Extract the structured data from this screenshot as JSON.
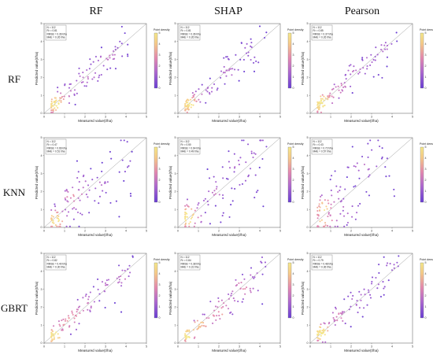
{
  "column_titles": [
    "RF",
    "SHAP",
    "Pearson"
  ],
  "row_titles": [
    "RF",
    "KNN",
    "GBRT"
  ],
  "chart_data": [
    {
      "type": "scatter",
      "row": "RF",
      "column": "RF",
      "xlabel": "Measured value(t/ha)",
      "ylabel": "Predicted value(t/ha)",
      "xlim": [
        0,
        5
      ],
      "ylim": [
        0,
        5
      ],
      "stats": [
        "N = 112",
        "R² = 0.81",
        "RMSE = 0.36 t/ha",
        "MAE = 0.26 t/ha"
      ],
      "colorbar_label": "Point density",
      "colorbar_ticks": [
        "0",
        "1",
        "2",
        "3",
        "4",
        "5"
      ],
      "colors": [
        "#6a3fd4",
        "#b06ad0",
        "#e58ab0",
        "#f7c98a",
        "#f5e98a"
      ]
    },
    {
      "type": "scatter",
      "row": "RF",
      "column": "SHAP",
      "xlabel": "Measured value(t/ha)",
      "ylabel": "Predicted value(t/ha)",
      "xlim": [
        0,
        5
      ],
      "ylim": [
        0,
        5
      ],
      "stats": [
        "N = 112",
        "R² = 0.81",
        "RMSE = 0.36 t/ha",
        "MAE = 0.26 t/ha"
      ],
      "colorbar_label": "Point density",
      "colorbar_ticks": [
        "0",
        "1",
        "2",
        "3",
        "4",
        "5"
      ],
      "colors": [
        "#6a3fd4",
        "#b06ad0",
        "#e58ab0",
        "#f7c98a",
        "#f5e98a"
      ]
    },
    {
      "type": "scatter",
      "row": "RF",
      "column": "Pearson",
      "xlabel": "Measured value(t/ha)",
      "ylabel": "Predicted value(t/ha)",
      "xlim": [
        0,
        5
      ],
      "ylim": [
        0,
        5
      ],
      "stats": [
        "N = 112",
        "R² = 0.85",
        "RMSE = 0.37 t/ha",
        "MAE = 0.26 t/ha"
      ],
      "colorbar_label": "Point density",
      "colorbar_ticks": [
        "0",
        "1",
        "2",
        "3",
        "4",
        "5"
      ],
      "colors": [
        "#6a3fd4",
        "#b06ad0",
        "#e58ab0",
        "#f7c98a",
        "#f5e98a"
      ]
    },
    {
      "type": "scatter",
      "row": "KNN",
      "column": "RF",
      "xlabel": "Measured value(t/ha)",
      "ylabel": "Predicted value(t/ha)",
      "xlim": [
        0,
        5
      ],
      "ylim": [
        0,
        5
      ],
      "stats": [
        "N = 112",
        "R² = 0.47",
        "RMSE = 0.66 t/ha",
        "MAE = 0.51 t/ha"
      ],
      "colorbar_label": "Point density",
      "colorbar_ticks": [
        "0",
        "1",
        "2",
        "3",
        "4",
        "5"
      ],
      "colors": [
        "#6a3fd4",
        "#b06ad0",
        "#e58ab0",
        "#f7c98a",
        "#f5e98a"
      ]
    },
    {
      "type": "scatter",
      "row": "KNN",
      "column": "SHAP",
      "xlabel": "Measured value(t/ha)",
      "ylabel": "Predicted value(t/ha)",
      "xlim": [
        0,
        5
      ],
      "ylim": [
        0,
        5
      ],
      "stats": [
        "N = 112",
        "R² = 0.50",
        "RMSE = 0.64 t/ha",
        "MAE = 0.49 t/ha"
      ],
      "colorbar_label": "Point density",
      "colorbar_ticks": [
        "0",
        "1",
        "2",
        "3",
        "4",
        "5"
      ],
      "colors": [
        "#6a3fd4",
        "#b06ad0",
        "#e58ab0",
        "#f7c98a",
        "#f5e98a"
      ]
    },
    {
      "type": "scatter",
      "row": "KNN",
      "column": "Pearson",
      "xlabel": "Measured value(t/ha)",
      "ylabel": "Predicted value(t/ha)",
      "xlim": [
        0,
        5
      ],
      "ylim": [
        0,
        5
      ],
      "stats": [
        "N = 112",
        "R² = 0.43",
        "RMSE = 0.72 t/ha",
        "MAE = 0.57 t/ha"
      ],
      "colorbar_label": "Point density",
      "colorbar_ticks": [
        "0",
        "1",
        "2",
        "3",
        "4",
        "5"
      ],
      "colors": [
        "#6a3fd4",
        "#b06ad0",
        "#e58ab0",
        "#f7c98a",
        "#f5e98a"
      ]
    },
    {
      "type": "scatter",
      "row": "GBRT",
      "column": "RF",
      "xlabel": "Measured value(t/ha)",
      "ylabel": "Predicted value(t/ha)",
      "xlim": [
        0,
        5
      ],
      "ylim": [
        0,
        5
      ],
      "stats": [
        "N = 112",
        "R² = 0.82",
        "RMSE = 0.40 t/ha",
        "MAE = 0.30 t/ha"
      ],
      "colorbar_label": "Point density",
      "colorbar_ticks": [
        "0",
        "1",
        "2",
        "3",
        "4",
        "5"
      ],
      "colors": [
        "#6a3fd4",
        "#b06ad0",
        "#e58ab0",
        "#f7c98a",
        "#f5e98a"
      ]
    },
    {
      "type": "scatter",
      "row": "GBRT",
      "column": "SHAP",
      "xlabel": "Measured value(t/ha)",
      "ylabel": "Predicted value(t/ha)",
      "xlim": [
        0,
        5
      ],
      "ylim": [
        0,
        5
      ],
      "stats": [
        "N = 112",
        "R² = 0.84",
        "RMSE = 0.38 t/ha",
        "MAE = 0.31 t/ha"
      ],
      "colorbar_label": "Point density",
      "colorbar_ticks": [
        "0",
        "1",
        "2",
        "3",
        "4",
        "5"
      ],
      "colors": [
        "#6a3fd4",
        "#b06ad0",
        "#e58ab0",
        "#f7c98a",
        "#f5e98a"
      ]
    },
    {
      "type": "scatter",
      "row": "GBRT",
      "column": "Pearson",
      "xlabel": "Measured value(t/ha)",
      "ylabel": "Predicted value(t/ha)",
      "xlim": [
        0,
        5
      ],
      "ylim": [
        0,
        5
      ],
      "stats": [
        "N = 112",
        "R² = 0.79",
        "RMSE = 0.48 t/ha",
        "MAE = 0.36 t/ha"
      ],
      "colorbar_label": "Point density",
      "colorbar_ticks": [
        "0",
        "1",
        "2",
        "3",
        "4",
        "5"
      ],
      "colors": [
        "#6a3fd4",
        "#b06ad0",
        "#e58ab0",
        "#f7c98a",
        "#f5e98a"
      ]
    }
  ]
}
